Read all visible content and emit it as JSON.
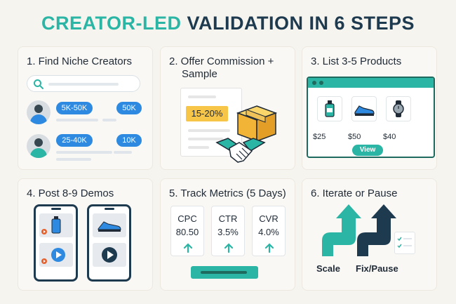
{
  "title": {
    "accent": "CREATOR-LED",
    "rest": " VALIDATION IN 6 STEPS"
  },
  "steps": [
    {
      "title": "1. Find Niche Creators",
      "pills": [
        "5K-50K",
        "50K",
        "25-40K",
        "10K"
      ]
    },
    {
      "title_line1": "2. Offer Commission +",
      "title_line2": "Sample",
      "badge": "15-20%"
    },
    {
      "title": "3. List 3-5 Products",
      "prices": [
        "$25",
        "$50",
        "$40"
      ],
      "button": "View"
    },
    {
      "title": "4. Post 8-9 Demos"
    },
    {
      "title": "5. Track Metrics (5 Days)",
      "metrics": [
        {
          "label": "CPC",
          "value": "80.50"
        },
        {
          "label": "CTR",
          "value": "3.5%"
        },
        {
          "label": "CVR",
          "value": "4.0%"
        }
      ]
    },
    {
      "title": "6. Iterate or Pause",
      "labels": [
        "Scale",
        "Fix/Pause"
      ]
    }
  ],
  "colors": {
    "teal": "#2bb5a4",
    "navy": "#1e3a4f",
    "blue": "#2d8ae0",
    "yellow": "#f7c548"
  },
  "icons": [
    "search-icon",
    "avatar-icon",
    "box-icon",
    "handshake-icon",
    "bottle-icon",
    "sneaker-icon",
    "watch-icon",
    "play-icon",
    "arrow-up-icon",
    "checklist-icon"
  ]
}
